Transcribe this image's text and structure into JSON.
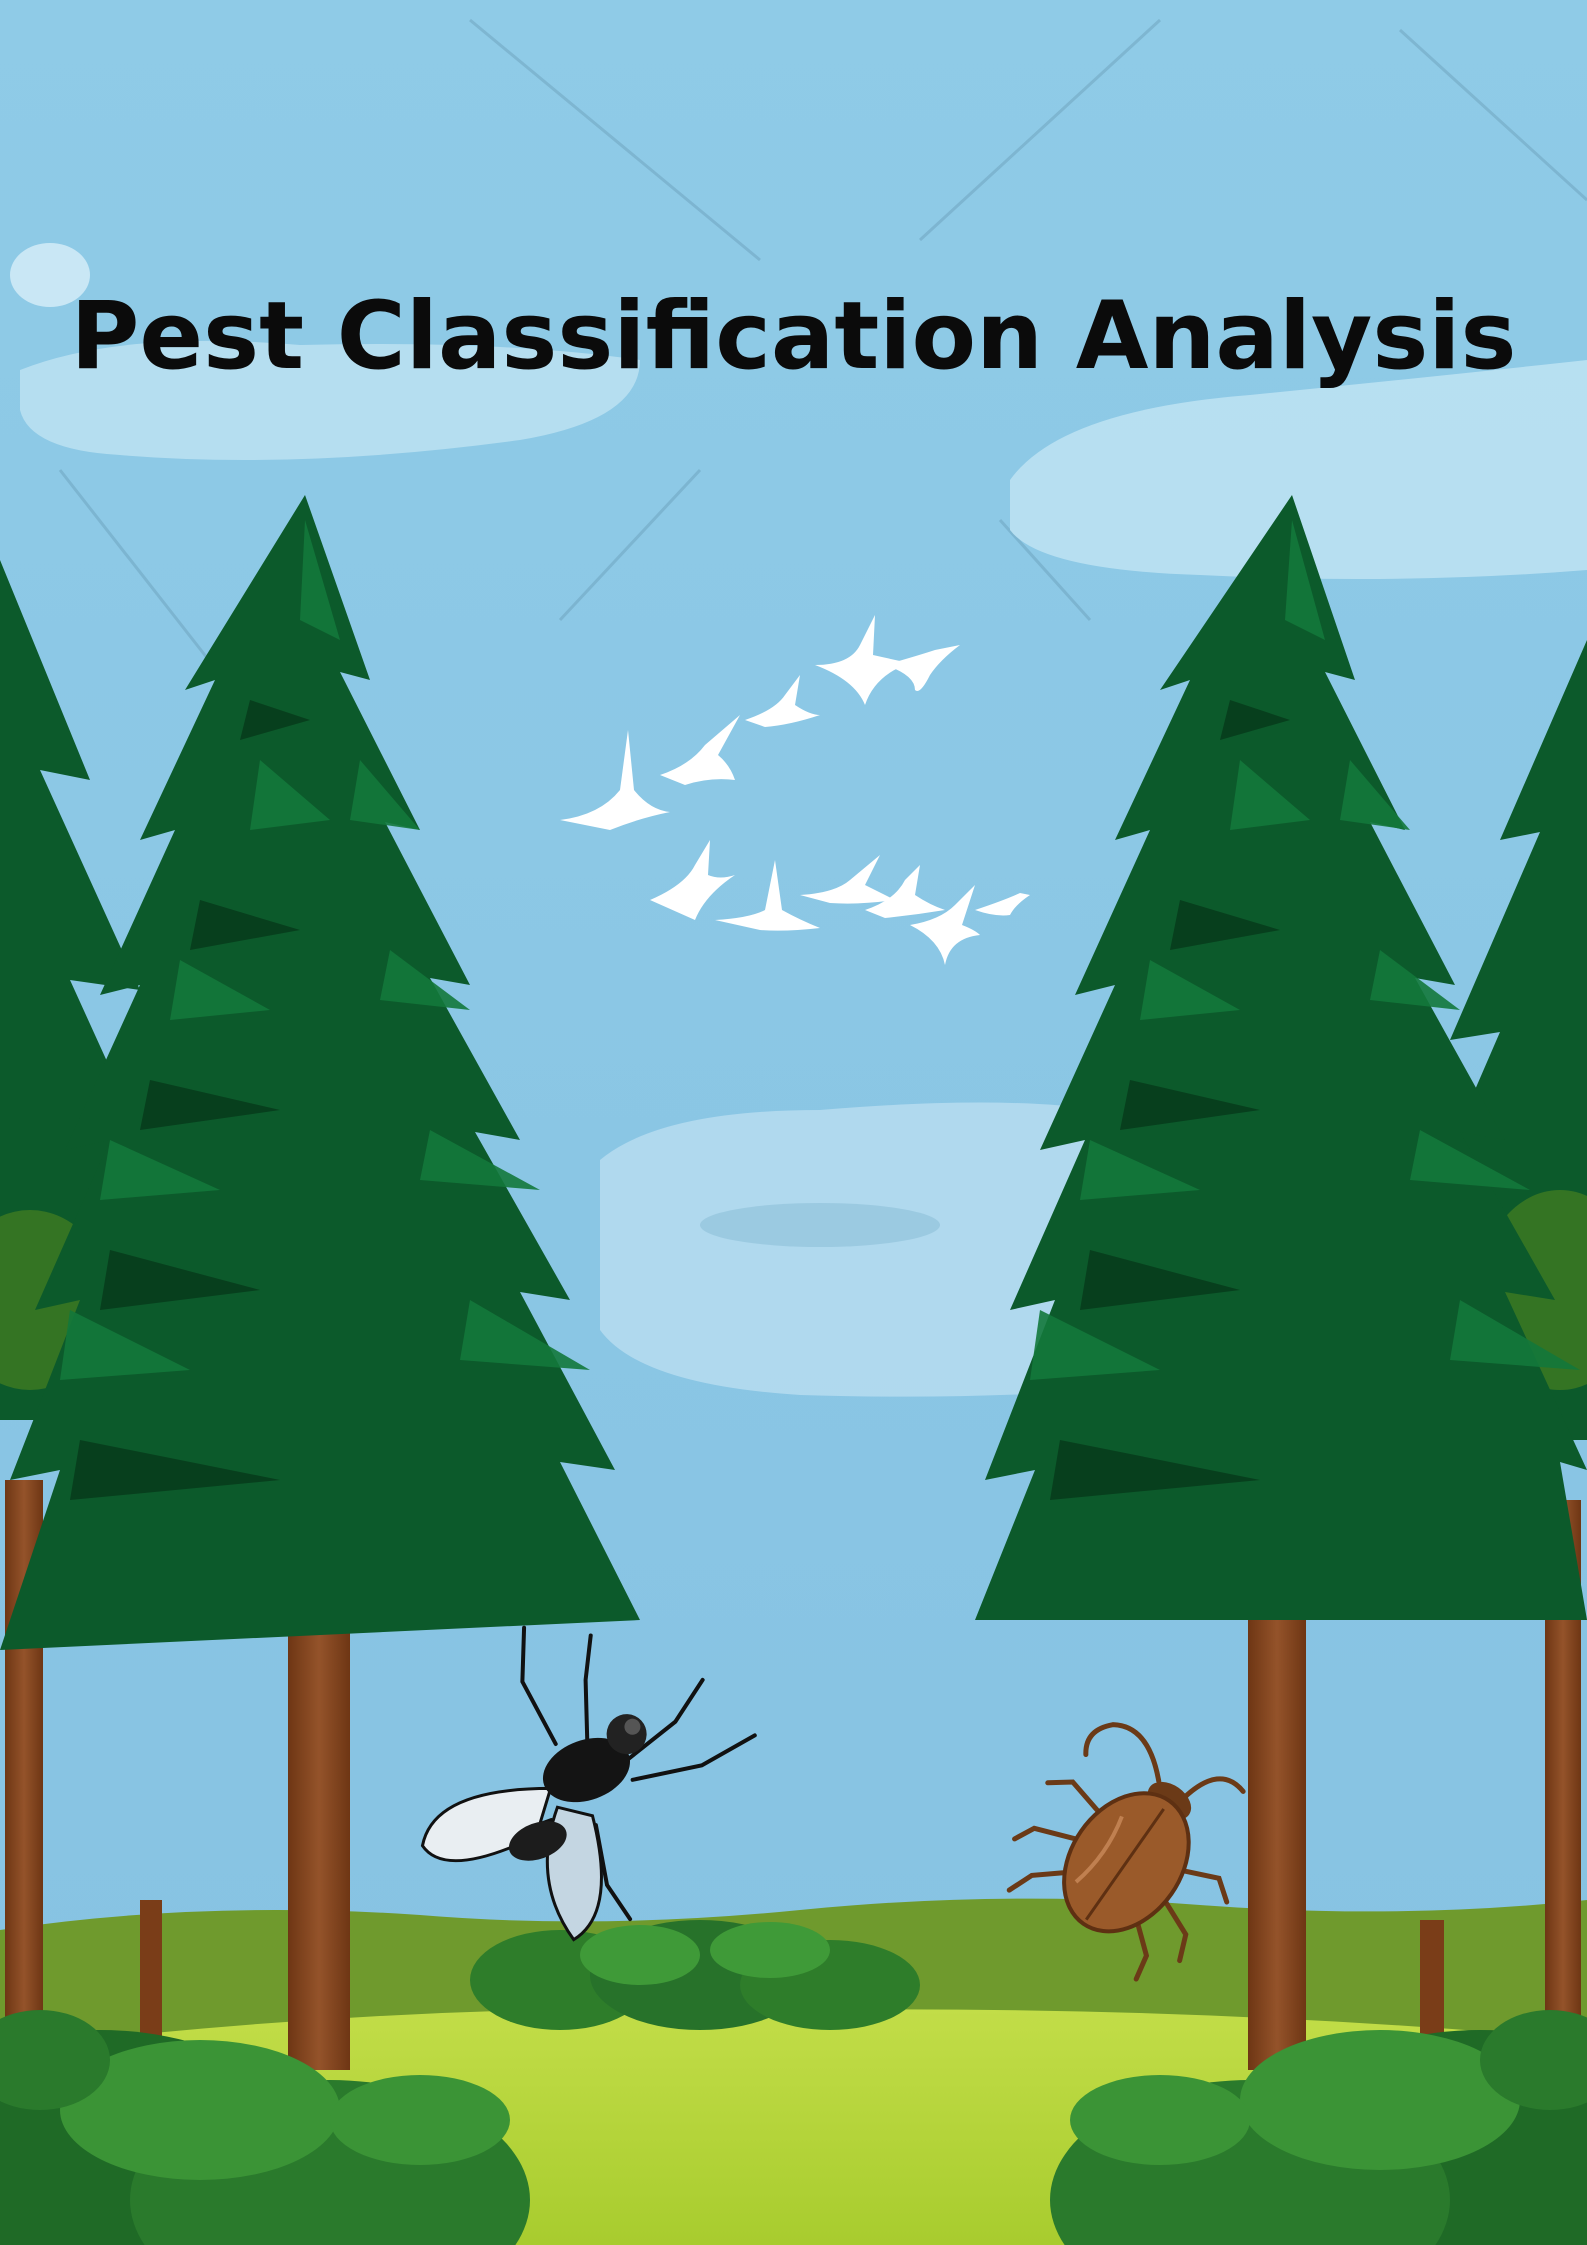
{
  "poster": {
    "title": "Pest Classification Analysis"
  },
  "illustration": {
    "sky_color": "#8ec9e6",
    "tree_dark_color": "#0a4a24",
    "tree_mid_color": "#0e6a34",
    "tree_light_color": "#1b8a48",
    "trunk_color": "#8a4a22",
    "grass_color": "#b7d63b",
    "bird_color": "#ffffff",
    "beetle_color": "#9a5a2a",
    "elements": [
      "clouds",
      "pine-trees",
      "bird-flock",
      "hills",
      "bushes",
      "fly-icon",
      "cockroach-icon"
    ]
  }
}
